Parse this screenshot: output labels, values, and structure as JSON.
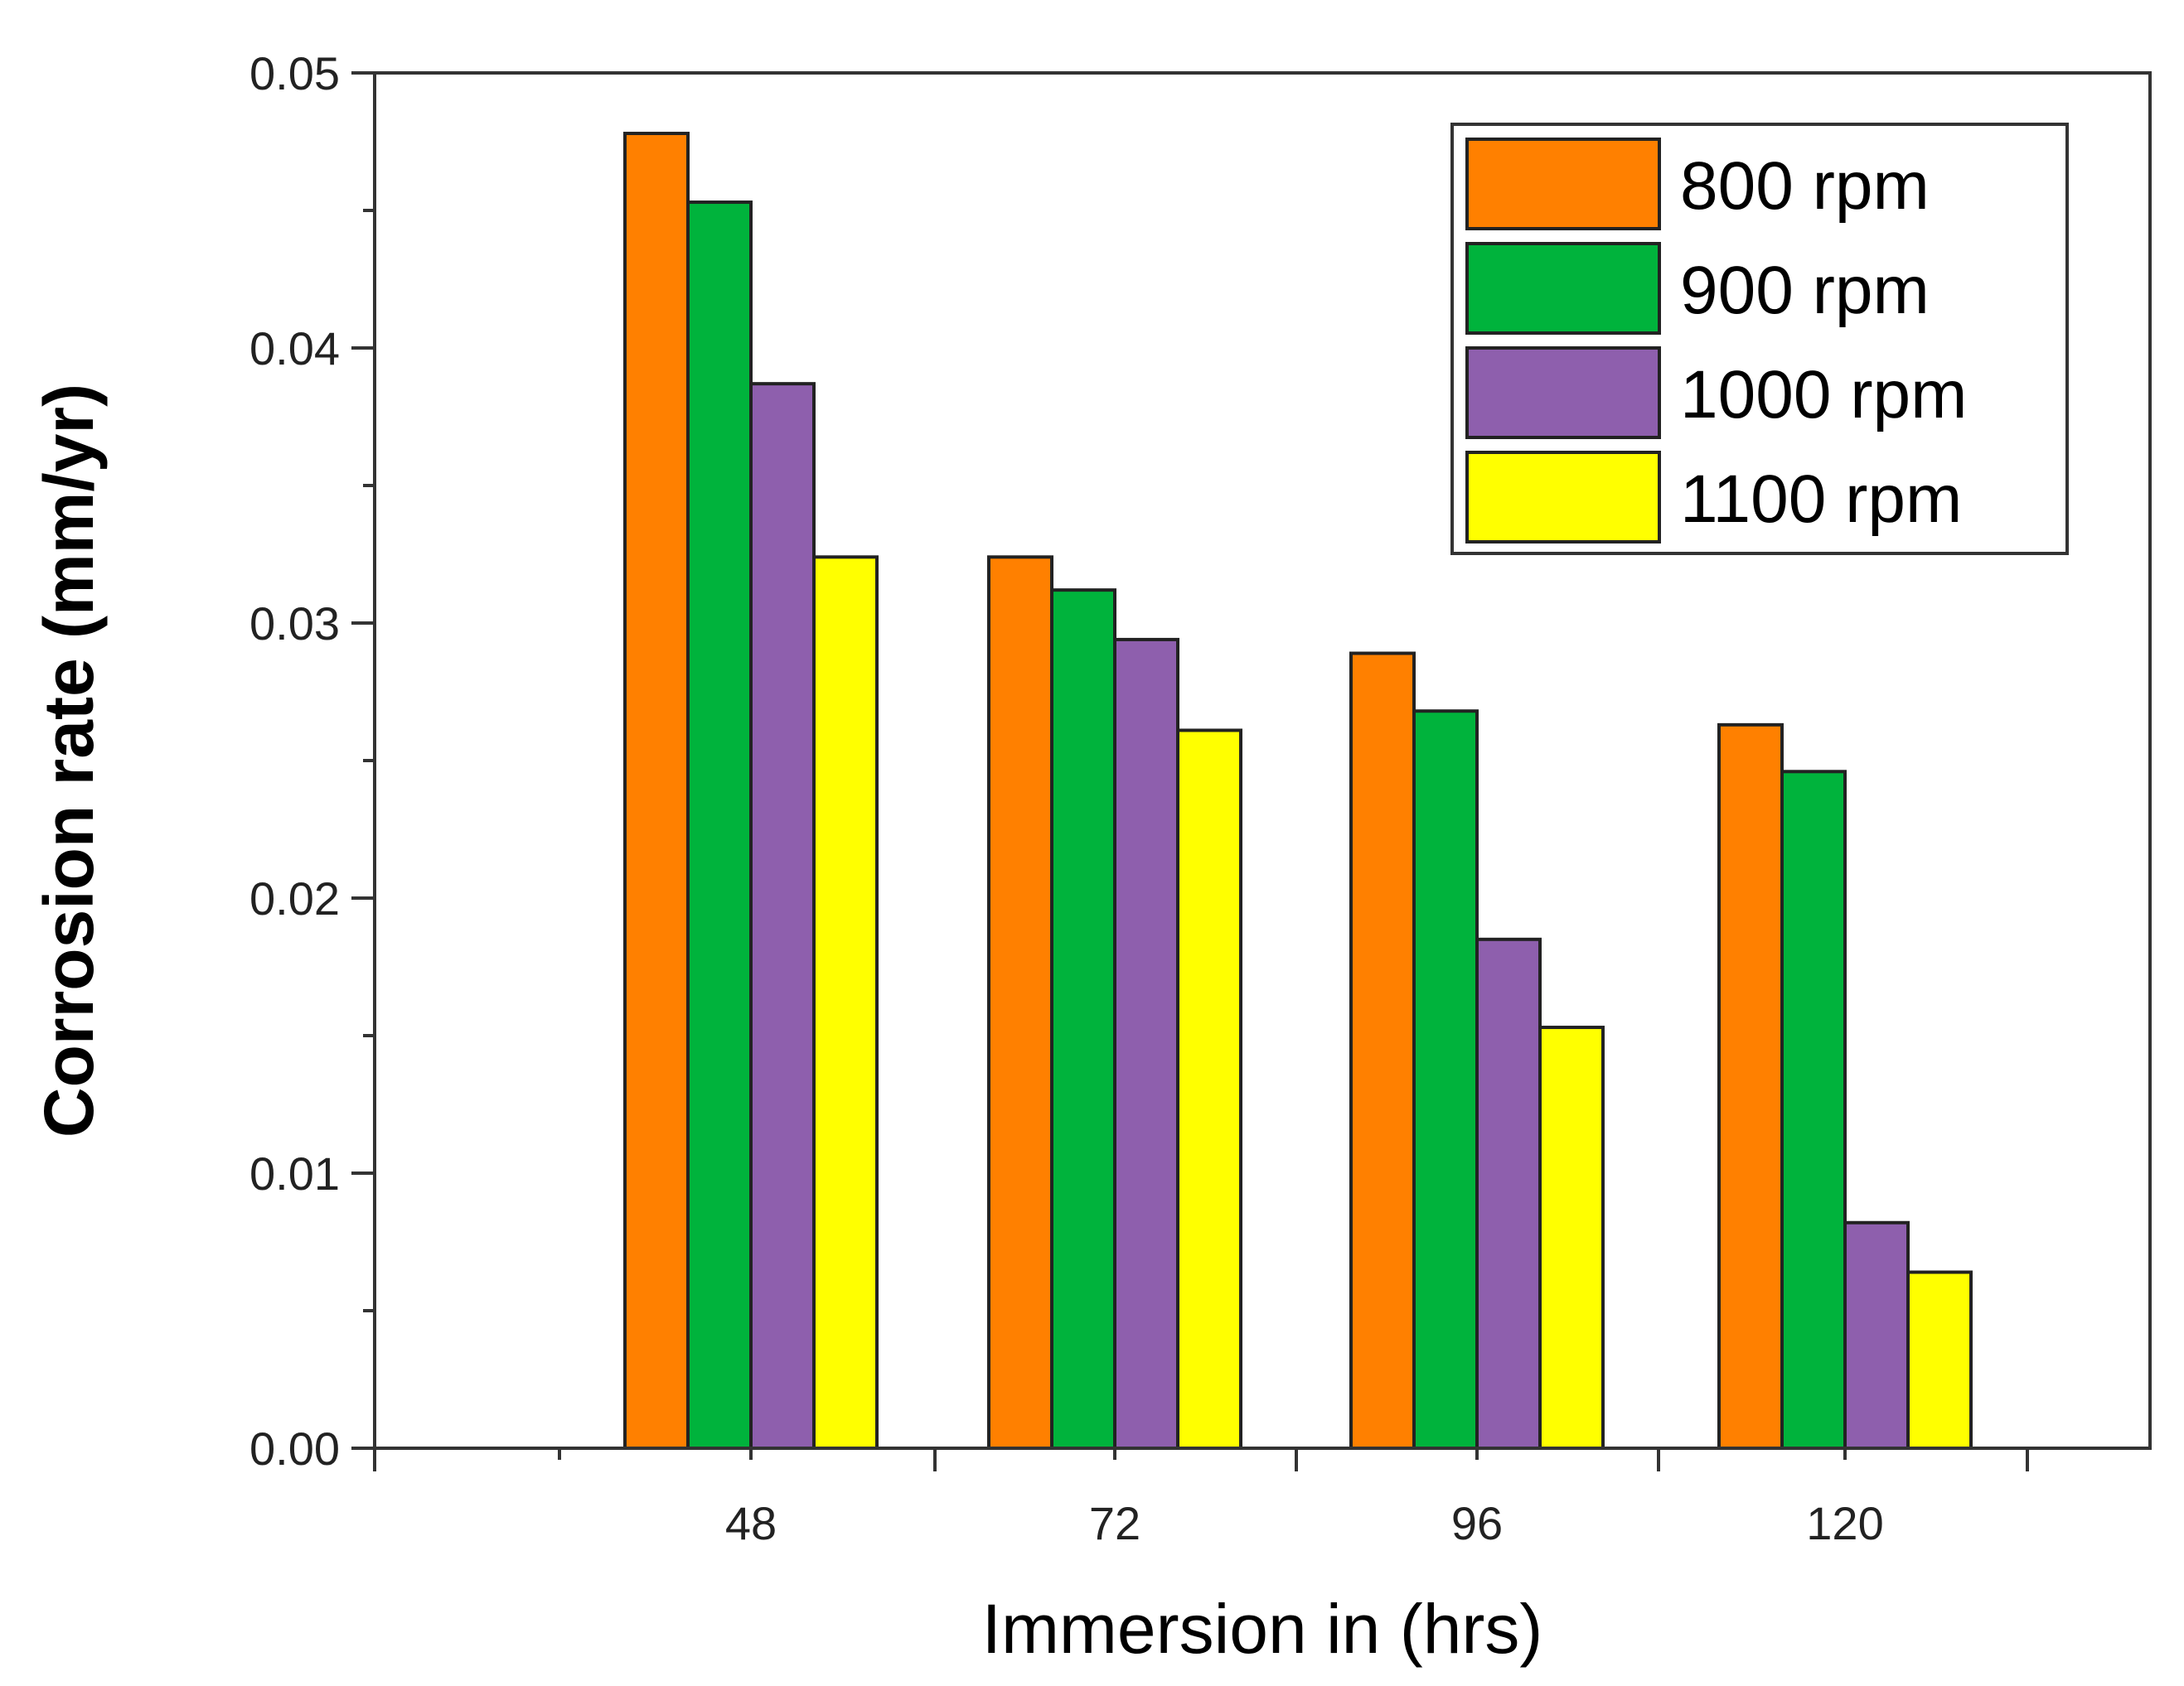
{
  "chart_data": {
    "type": "bar",
    "title": "",
    "xlabel": "Immersion in (hrs)",
    "ylabel": "Corrosion rate (mm/yr)",
    "categories": [
      "48",
      "72",
      "96",
      "120"
    ],
    "ylim": [
      0,
      0.05
    ],
    "yticks": [
      "0.00",
      "0.01",
      "0.02",
      "0.03",
      "0.04",
      "0.05"
    ],
    "legend_position": "top-right",
    "series": [
      {
        "name": "800 rpm",
        "color": "#ff8000",
        "values": [
          0.0478,
          0.0324,
          0.0289,
          0.0263
        ]
      },
      {
        "name": "900 rpm",
        "color": "#00b33c",
        "values": [
          0.0453,
          0.0312,
          0.0268,
          0.0246
        ]
      },
      {
        "name": "1000 rpm",
        "color": "#8e5fad",
        "values": [
          0.0387,
          0.0294,
          0.0185,
          0.0082
        ]
      },
      {
        "name": "1100 rpm",
        "color": "#ffff00",
        "values": [
          0.0324,
          0.0261,
          0.0153,
          0.0064
        ]
      }
    ]
  }
}
